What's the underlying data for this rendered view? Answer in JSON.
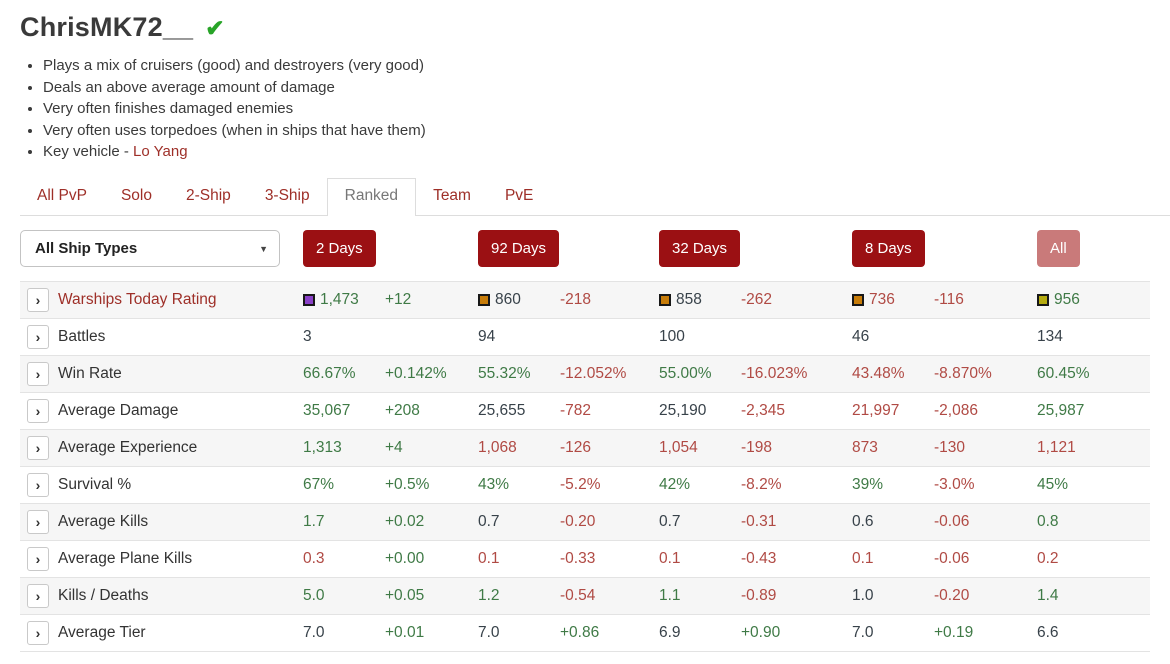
{
  "page": {
    "title": "ChrisMK72__",
    "verified_icon": "check-icon"
  },
  "summary": {
    "bullets": [
      "Plays a mix of cruisers (good) and destroyers (very good)",
      "Deals an above average amount of damage",
      "Very often finishes damaged enemies",
      "Very often uses torpedoes (when in ships that have them)"
    ],
    "key_vehicle": {
      "prefix": "Key vehicle - ",
      "ship_link": "Lo Yang"
    }
  },
  "tabs": [
    {
      "label": "All PvP",
      "active": false
    },
    {
      "label": "Solo",
      "active": false
    },
    {
      "label": "2-Ship",
      "active": false
    },
    {
      "label": "3-Ship",
      "active": false
    },
    {
      "label": "Ranked",
      "active": true
    },
    {
      "label": "Team",
      "active": false
    },
    {
      "label": "PvE",
      "active": false
    }
  ],
  "filters": {
    "ship_type_select": {
      "value": "All Ship Types",
      "caret_icon": "caret-down-icon"
    },
    "period_buttons": [
      {
        "label": "2 Days",
        "variant": "primary"
      },
      {
        "label": "92 Days",
        "variant": "primary"
      },
      {
        "label": "32 Days",
        "variant": "primary"
      },
      {
        "label": "8 Days",
        "variant": "primary"
      },
      {
        "label": "All",
        "variant": "muted"
      }
    ]
  },
  "colors": {
    "accent_button_red": "#9b1013",
    "muted_button_red": "#c97a7a",
    "link_red": "#9e2f28",
    "positive_green": "#3f7a46",
    "negative_red": "#b04a44",
    "neutral_dark": "#38424a",
    "rating_swatch_purple": "#8a41c8",
    "rating_swatch_orange": "#c87d0a",
    "rating_swatch_yellow": "#b5ab10"
  },
  "table": {
    "periods": [
      "2 Days",
      "92 Days",
      "32 Days",
      "8 Days",
      "All"
    ],
    "rows": [
      {
        "label": "Warships Today Rating",
        "link": true,
        "cells": [
          {
            "text": "1,473",
            "tone": "green",
            "swatch": "purple"
          },
          {
            "text": "+12",
            "tone": "green"
          },
          {
            "text": "860",
            "tone": "dark",
            "swatch": "orange"
          },
          {
            "text": "-218",
            "tone": "red"
          },
          {
            "text": "858",
            "tone": "dark",
            "swatch": "orange"
          },
          {
            "text": "-262",
            "tone": "red"
          },
          {
            "text": "736",
            "tone": "red",
            "swatch": "orange"
          },
          {
            "text": "-116",
            "tone": "red"
          },
          {
            "text": "956",
            "tone": "green",
            "swatch": "yellow"
          }
        ]
      },
      {
        "label": "Battles",
        "link": false,
        "cells": [
          {
            "text": "3",
            "tone": "dark"
          },
          {
            "text": "",
            "tone": "dark"
          },
          {
            "text": "94",
            "tone": "dark"
          },
          {
            "text": "",
            "tone": "dark"
          },
          {
            "text": "100",
            "tone": "dark"
          },
          {
            "text": "",
            "tone": "dark"
          },
          {
            "text": "46",
            "tone": "dark"
          },
          {
            "text": "",
            "tone": "dark"
          },
          {
            "text": "134",
            "tone": "dark"
          }
        ]
      },
      {
        "label": "Win Rate",
        "link": false,
        "cells": [
          {
            "text": "66.67%",
            "tone": "green"
          },
          {
            "text": "+0.142%",
            "tone": "green"
          },
          {
            "text": "55.32%",
            "tone": "green"
          },
          {
            "text": "-12.052%",
            "tone": "red"
          },
          {
            "text": "55.00%",
            "tone": "green"
          },
          {
            "text": "-16.023%",
            "tone": "red"
          },
          {
            "text": "43.48%",
            "tone": "red"
          },
          {
            "text": "-8.870%",
            "tone": "red"
          },
          {
            "text": "60.45%",
            "tone": "green"
          }
        ]
      },
      {
        "label": "Average Damage",
        "link": false,
        "cells": [
          {
            "text": "35,067",
            "tone": "green"
          },
          {
            "text": "+208",
            "tone": "green"
          },
          {
            "text": "25,655",
            "tone": "dark"
          },
          {
            "text": "-782",
            "tone": "red"
          },
          {
            "text": "25,190",
            "tone": "dark"
          },
          {
            "text": "-2,345",
            "tone": "red"
          },
          {
            "text": "21,997",
            "tone": "red"
          },
          {
            "text": "-2,086",
            "tone": "red"
          },
          {
            "text": "25,987",
            "tone": "green"
          }
        ]
      },
      {
        "label": "Average Experience",
        "link": false,
        "cells": [
          {
            "text": "1,313",
            "tone": "green"
          },
          {
            "text": "+4",
            "tone": "green"
          },
          {
            "text": "1,068",
            "tone": "red"
          },
          {
            "text": "-126",
            "tone": "red"
          },
          {
            "text": "1,054",
            "tone": "red"
          },
          {
            "text": "-198",
            "tone": "red"
          },
          {
            "text": "873",
            "tone": "red"
          },
          {
            "text": "-130",
            "tone": "red"
          },
          {
            "text": "1,121",
            "tone": "red"
          }
        ]
      },
      {
        "label": "Survival %",
        "link": false,
        "cells": [
          {
            "text": "67%",
            "tone": "green"
          },
          {
            "text": "+0.5%",
            "tone": "green"
          },
          {
            "text": "43%",
            "tone": "green"
          },
          {
            "text": "-5.2%",
            "tone": "red"
          },
          {
            "text": "42%",
            "tone": "green"
          },
          {
            "text": "-8.2%",
            "tone": "red"
          },
          {
            "text": "39%",
            "tone": "green"
          },
          {
            "text": "-3.0%",
            "tone": "red"
          },
          {
            "text": "45%",
            "tone": "green"
          }
        ]
      },
      {
        "label": "Average Kills",
        "link": false,
        "cells": [
          {
            "text": "1.7",
            "tone": "green"
          },
          {
            "text": "+0.02",
            "tone": "green"
          },
          {
            "text": "0.7",
            "tone": "dark"
          },
          {
            "text": "-0.20",
            "tone": "red"
          },
          {
            "text": "0.7",
            "tone": "dark"
          },
          {
            "text": "-0.31",
            "tone": "red"
          },
          {
            "text": "0.6",
            "tone": "dark"
          },
          {
            "text": "-0.06",
            "tone": "red"
          },
          {
            "text": "0.8",
            "tone": "green"
          }
        ]
      },
      {
        "label": "Average Plane Kills",
        "link": false,
        "cells": [
          {
            "text": "0.3",
            "tone": "red"
          },
          {
            "text": "+0.00",
            "tone": "green"
          },
          {
            "text": "0.1",
            "tone": "red"
          },
          {
            "text": "-0.33",
            "tone": "red"
          },
          {
            "text": "0.1",
            "tone": "red"
          },
          {
            "text": "-0.43",
            "tone": "red"
          },
          {
            "text": "0.1",
            "tone": "red"
          },
          {
            "text": "-0.06",
            "tone": "red"
          },
          {
            "text": "0.2",
            "tone": "red"
          }
        ]
      },
      {
        "label": "Kills / Deaths",
        "link": false,
        "cells": [
          {
            "text": "5.0",
            "tone": "green"
          },
          {
            "text": "+0.05",
            "tone": "green"
          },
          {
            "text": "1.2",
            "tone": "green"
          },
          {
            "text": "-0.54",
            "tone": "red"
          },
          {
            "text": "1.1",
            "tone": "green"
          },
          {
            "text": "-0.89",
            "tone": "red"
          },
          {
            "text": "1.0",
            "tone": "dark"
          },
          {
            "text": "-0.20",
            "tone": "red"
          },
          {
            "text": "1.4",
            "tone": "green"
          }
        ]
      },
      {
        "label": "Average Tier",
        "link": false,
        "cells": [
          {
            "text": "7.0",
            "tone": "dark"
          },
          {
            "text": "+0.01",
            "tone": "green"
          },
          {
            "text": "7.0",
            "tone": "dark"
          },
          {
            "text": "+0.86",
            "tone": "green"
          },
          {
            "text": "6.9",
            "tone": "dark"
          },
          {
            "text": "+0.90",
            "tone": "green"
          },
          {
            "text": "7.0",
            "tone": "dark"
          },
          {
            "text": "+0.19",
            "tone": "green"
          },
          {
            "text": "6.6",
            "tone": "dark"
          }
        ]
      }
    ]
  }
}
